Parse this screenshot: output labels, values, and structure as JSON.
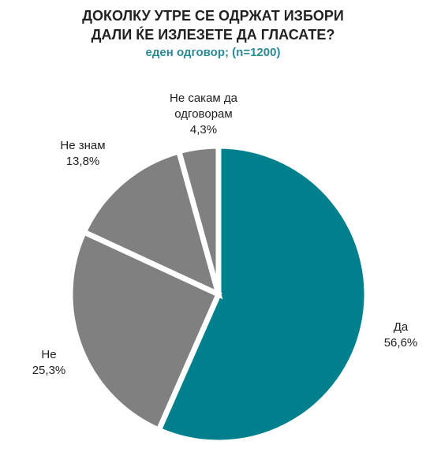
{
  "chart_data": {
    "type": "pie",
    "title": "ДОКОЛКУ УТРЕ СЕ ОДРЖАТ ИЗБОРИ\nДАЛИ ЌЕ ИЗЛЕЗЕТЕ ДА ГЛАСАТЕ?",
    "subtitle": "еден одговор; (n=1200)",
    "categories": [
      "Да",
      "Не",
      "Не знам",
      "Не сакам да одговорам"
    ],
    "values": [
      56.6,
      25.3,
      13.8,
      4.3
    ],
    "value_labels": [
      "56,6%",
      "25,3%",
      "13,8%",
      "4,3%"
    ],
    "colors": [
      "#007f8c",
      "#808080",
      "#808080",
      "#808080"
    ]
  }
}
